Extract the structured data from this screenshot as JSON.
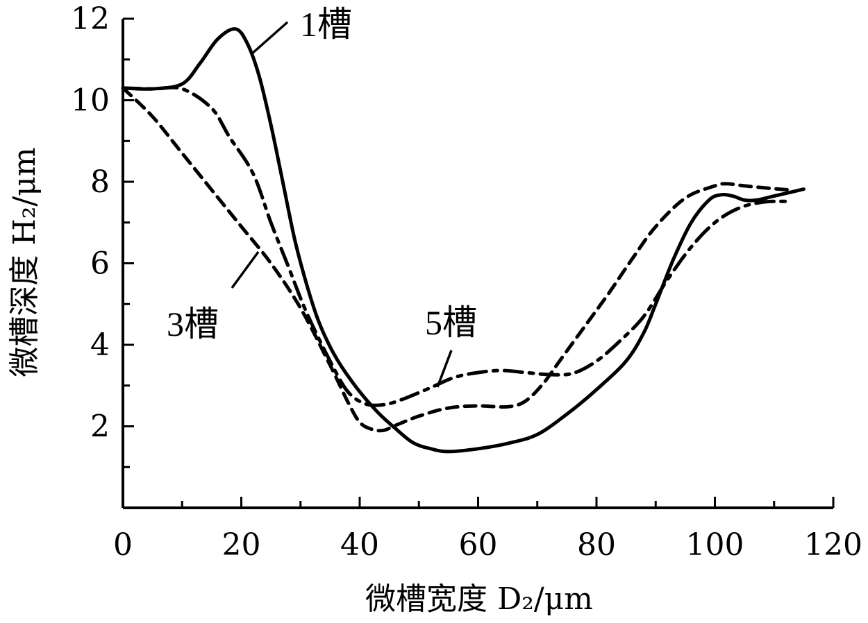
{
  "chart_data": {
    "type": "line",
    "xlabel": "微槽宽度 D₂/μm",
    "ylabel": "微槽深度 H₂/μm",
    "xlim": [
      0,
      120
    ],
    "ylim": [
      0,
      12
    ],
    "xticks": [
      0,
      20,
      40,
      60,
      80,
      100,
      120
    ],
    "yticks": [
      2,
      4,
      6,
      8,
      10,
      12
    ],
    "xtick_labels": [
      "0",
      "20",
      "40",
      "60",
      "80",
      "100",
      "120"
    ],
    "ytick_labels": [
      "2",
      "4",
      "6",
      "8",
      "10",
      "12"
    ],
    "grid": false,
    "series": [
      {
        "name": "1槽",
        "style": "solid",
        "x": [
          0,
          5,
          10,
          13,
          16,
          19,
          21,
          23,
          25,
          27,
          29,
          31,
          33,
          35,
          37,
          40,
          43,
          46,
          49,
          52,
          55,
          60,
          65,
          70,
          75,
          80,
          85,
          88,
          90,
          93,
          96,
          99,
          101,
          103,
          105,
          107,
          110,
          113,
          115
        ],
        "y": [
          10.3,
          10.28,
          10.4,
          10.9,
          11.5,
          11.75,
          11.4,
          10.6,
          9.4,
          8.0,
          6.6,
          5.5,
          4.6,
          3.95,
          3.45,
          2.85,
          2.35,
          1.95,
          1.6,
          1.45,
          1.38,
          1.45,
          1.58,
          1.8,
          2.3,
          2.9,
          3.6,
          4.3,
          5.0,
          6.1,
          7.0,
          7.55,
          7.68,
          7.65,
          7.55,
          7.55,
          7.65,
          7.75,
          7.82
        ]
      },
      {
        "name": "3槽",
        "style": "dashed",
        "x": [
          0,
          5,
          10,
          15,
          20,
          25,
          30,
          35,
          38,
          40,
          42,
          44,
          46,
          50,
          55,
          60,
          65,
          68,
          71,
          74,
          78,
          82,
          86,
          90,
          95,
          100,
          102,
          105,
          110,
          113
        ],
        "y": [
          10.3,
          9.6,
          8.7,
          7.8,
          6.9,
          6.0,
          4.9,
          3.5,
          2.6,
          2.1,
          1.93,
          1.9,
          2.02,
          2.25,
          2.45,
          2.5,
          2.48,
          2.62,
          3.05,
          3.65,
          4.45,
          5.25,
          6.1,
          6.9,
          7.6,
          7.9,
          7.95,
          7.9,
          7.83,
          7.8
        ]
      },
      {
        "name": "5槽",
        "style": "dashdot",
        "x": [
          0,
          5,
          10,
          15,
          18,
          22,
          25,
          28,
          31,
          35,
          38,
          41,
          44,
          47,
          52,
          56,
          60,
          64,
          68,
          72,
          76,
          80,
          84,
          88,
          92,
          96,
          100,
          104,
          108,
          112
        ],
        "y": [
          10.3,
          10.28,
          10.28,
          9.8,
          9.1,
          8.2,
          7.0,
          5.9,
          4.8,
          3.6,
          2.85,
          2.55,
          2.53,
          2.65,
          2.95,
          3.2,
          3.32,
          3.37,
          3.32,
          3.27,
          3.3,
          3.6,
          4.1,
          4.7,
          5.6,
          6.4,
          7.0,
          7.35,
          7.5,
          7.52
        ]
      }
    ],
    "series_labels": [
      "1槽",
      "3槽",
      "5槽"
    ]
  }
}
